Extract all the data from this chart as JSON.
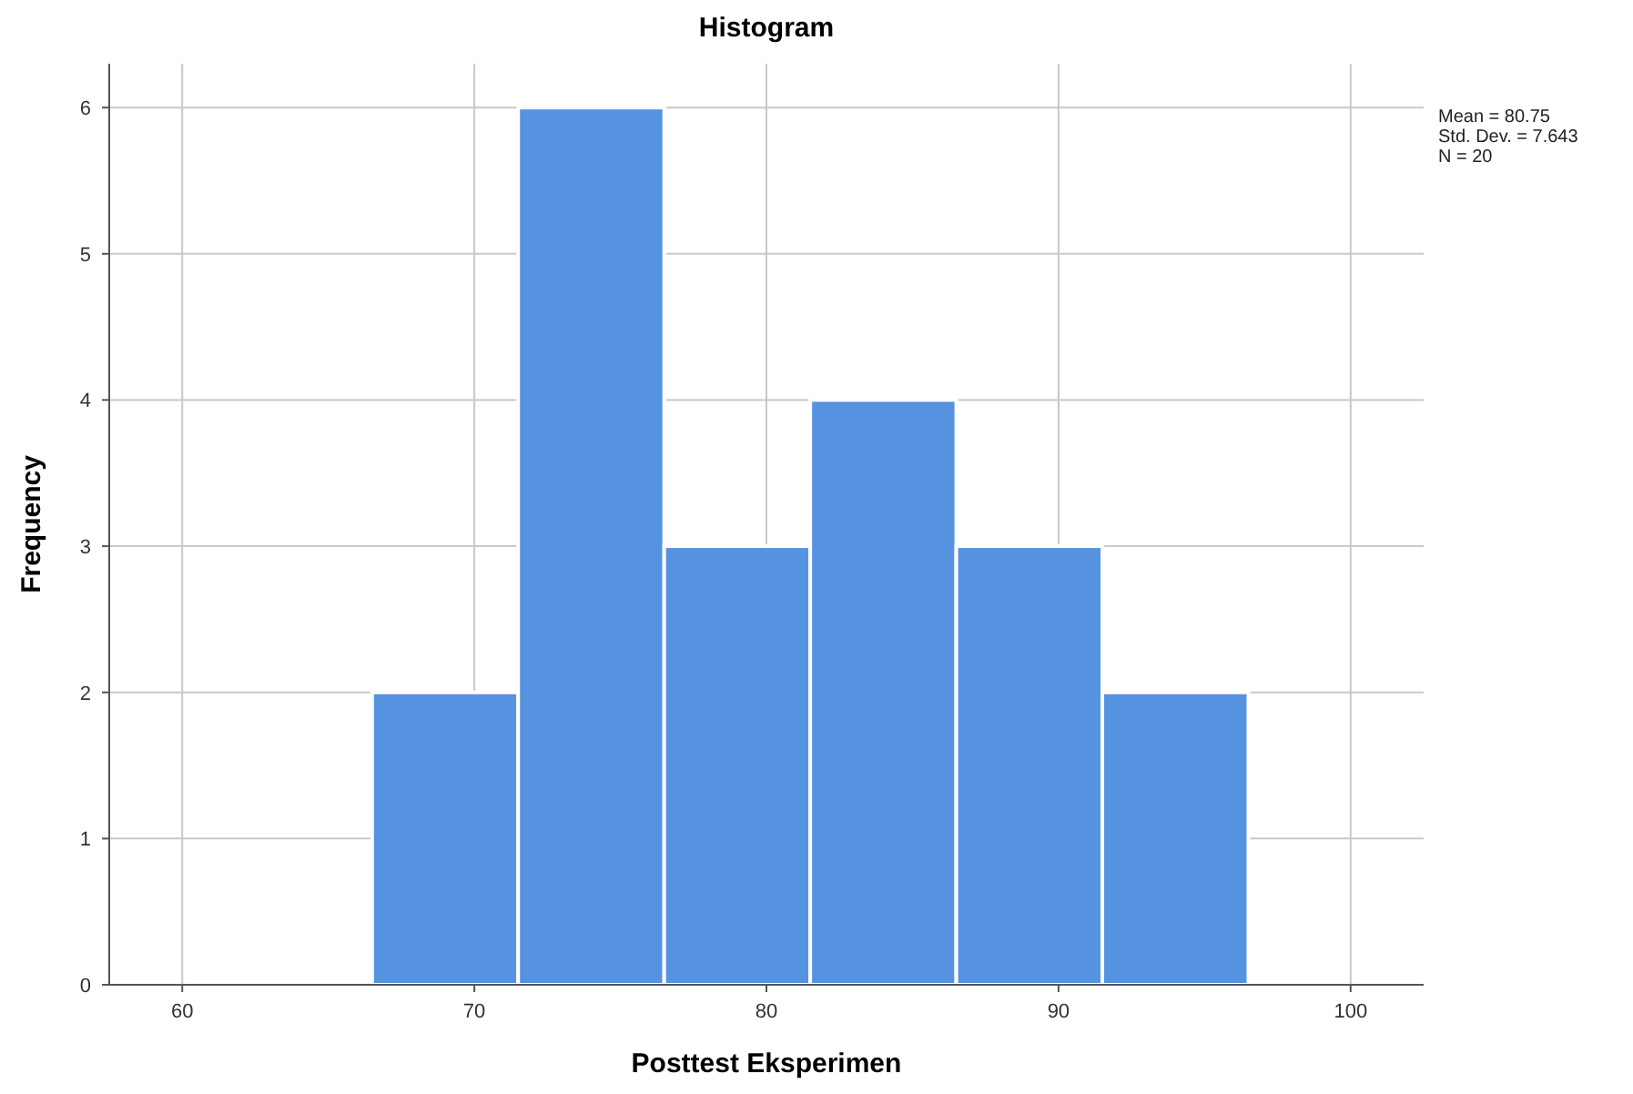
{
  "chart_data": {
    "type": "histogram",
    "title": "Histogram",
    "xlabel": "Posttest Eksperimen",
    "ylabel": "Frequency",
    "bins": [
      66.5,
      71.5,
      76.5,
      81.5,
      86.5,
      91.5,
      96.5
    ],
    "values": [
      2,
      6,
      3,
      4,
      3,
      2
    ],
    "color": "#5593e0",
    "xlim": [
      57.5,
      102.5
    ],
    "xticks": [
      60,
      70,
      80,
      90,
      100
    ],
    "ylim": [
      0,
      6.3
    ],
    "yticks": [
      0,
      1,
      2,
      3,
      4,
      5,
      6
    ],
    "grid": true,
    "annotations": [
      "Mean = 80.75",
      "Std. Dev. = 7.643",
      "N = 20"
    ]
  }
}
